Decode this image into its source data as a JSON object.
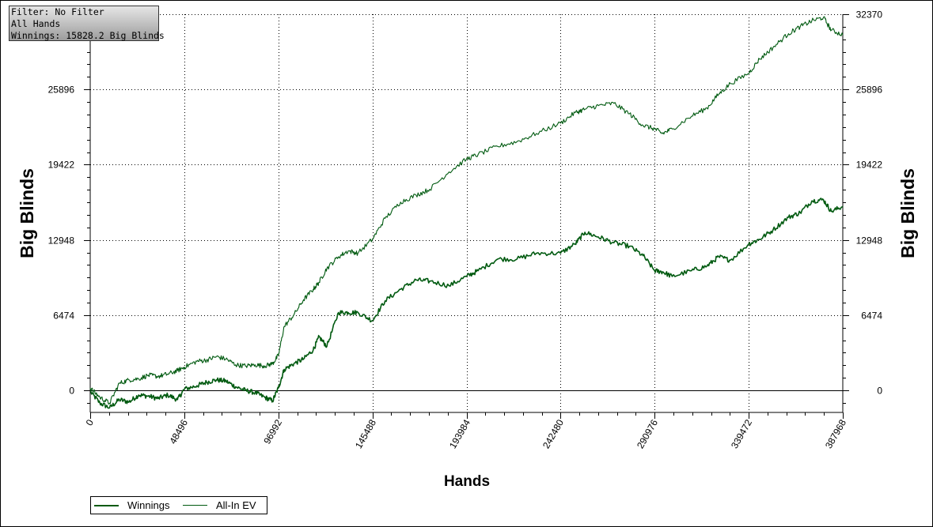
{
  "info_box": {
    "filter": "Filter: No Filter",
    "hands": "All Hands",
    "winnings": "Winnings: 15828.2 Big Blinds"
  },
  "legend": {
    "winnings_label": "Winnings",
    "allin_label": "All-In EV"
  },
  "colors": {
    "series": "#005a10",
    "grid": "#000000"
  },
  "chart_data": {
    "type": "line",
    "xlabel": "Hands",
    "ylabel": "Big Blinds",
    "xlim": [
      0,
      387968
    ],
    "ylim": [
      -1900,
      32370
    ],
    "x_ticks": [
      0,
      48496,
      96992,
      145488,
      193984,
      242480,
      290976,
      339472,
      387968
    ],
    "x_tick_labels": [
      "0",
      "48496",
      "96992",
      "145488",
      "193984",
      "242480",
      "290976",
      "339472",
      "387968"
    ],
    "y_ticks": [
      0,
      6474,
      12948,
      19422,
      25896,
      32370
    ],
    "y_tick_labels": [
      "0",
      "6474",
      "12948",
      "19422",
      "25896",
      "32370"
    ],
    "y_tick_labels_left": [
      "0",
      "6474",
      "12948",
      "19422",
      "25896",
      ""
    ],
    "grid": true,
    "legend_position": "bottom-left",
    "series": [
      {
        "name": "Winnings",
        "x": [
          0,
          5000,
          10000,
          15000,
          20000,
          25000,
          30000,
          35000,
          40000,
          45000,
          48496,
          55000,
          60000,
          65000,
          70000,
          75000,
          80000,
          85000,
          90000,
          94000,
          96992,
          100000,
          105000,
          110000,
          115000,
          118000,
          122000,
          128000,
          133000,
          138000,
          145488,
          152000,
          160000,
          168000,
          175000,
          185000,
          193984,
          200000,
          210000,
          220000,
          230000,
          242480,
          250000,
          255000,
          262000,
          270000,
          278000,
          285000,
          290976,
          295000,
          300000,
          310000,
          318000,
          324000,
          330000,
          339472,
          345000,
          352000,
          360000,
          366000,
          372000,
          378000,
          382000,
          387968
        ],
        "y": [
          -100,
          -1100,
          -1500,
          -800,
          -1000,
          -400,
          -500,
          -700,
          -400,
          -800,
          100,
          400,
          700,
          900,
          800,
          300,
          0,
          -200,
          -600,
          -900,
          200,
          1800,
          2300,
          2700,
          3500,
          4600,
          3800,
          6700,
          6700,
          6700,
          6000,
          7700,
          8700,
          9500,
          9400,
          9000,
          9800,
          10300,
          11300,
          11300,
          11800,
          11800,
          12600,
          13600,
          13200,
          12700,
          12400,
          11600,
          10300,
          10200,
          9800,
          10300,
          10700,
          11500,
          11200,
          12600,
          13000,
          13800,
          14900,
          15300,
          16300,
          16400,
          15400,
          15828.2
        ]
      },
      {
        "name": "All-In EV",
        "x": [
          0,
          5000,
          10000,
          15000,
          20000,
          25000,
          30000,
          35000,
          40000,
          45000,
          48496,
          55000,
          60000,
          65000,
          70000,
          75000,
          80000,
          85000,
          90000,
          94000,
          96992,
          100000,
          105000,
          110000,
          115000,
          118000,
          122000,
          128000,
          133000,
          138000,
          145488,
          152000,
          160000,
          168000,
          175000,
          185000,
          193984,
          200000,
          210000,
          220000,
          230000,
          242480,
          250000,
          255000,
          262000,
          270000,
          278000,
          285000,
          290976,
          295000,
          300000,
          310000,
          318000,
          324000,
          330000,
          339472,
          345000,
          352000,
          360000,
          366000,
          372000,
          378000,
          382000,
          387968
        ],
        "y": [
          200,
          -600,
          -1100,
          600,
          900,
          1000,
          1300,
          1200,
          1400,
          1700,
          2000,
          2500,
          2600,
          2900,
          2700,
          2200,
          2100,
          2200,
          2100,
          2300,
          3000,
          5500,
          6500,
          7800,
          8700,
          9300,
          10500,
          11500,
          12000,
          11800,
          13000,
          14800,
          16200,
          16800,
          17300,
          18800,
          19900,
          20300,
          21000,
          21400,
          22100,
          23000,
          23900,
          24200,
          24500,
          24700,
          23800,
          22800,
          22500,
          22100,
          22500,
          23600,
          24300,
          25500,
          26400,
          27300,
          28500,
          29500,
          30700,
          31300,
          31800,
          32100,
          31000,
          30600
        ]
      }
    ]
  }
}
